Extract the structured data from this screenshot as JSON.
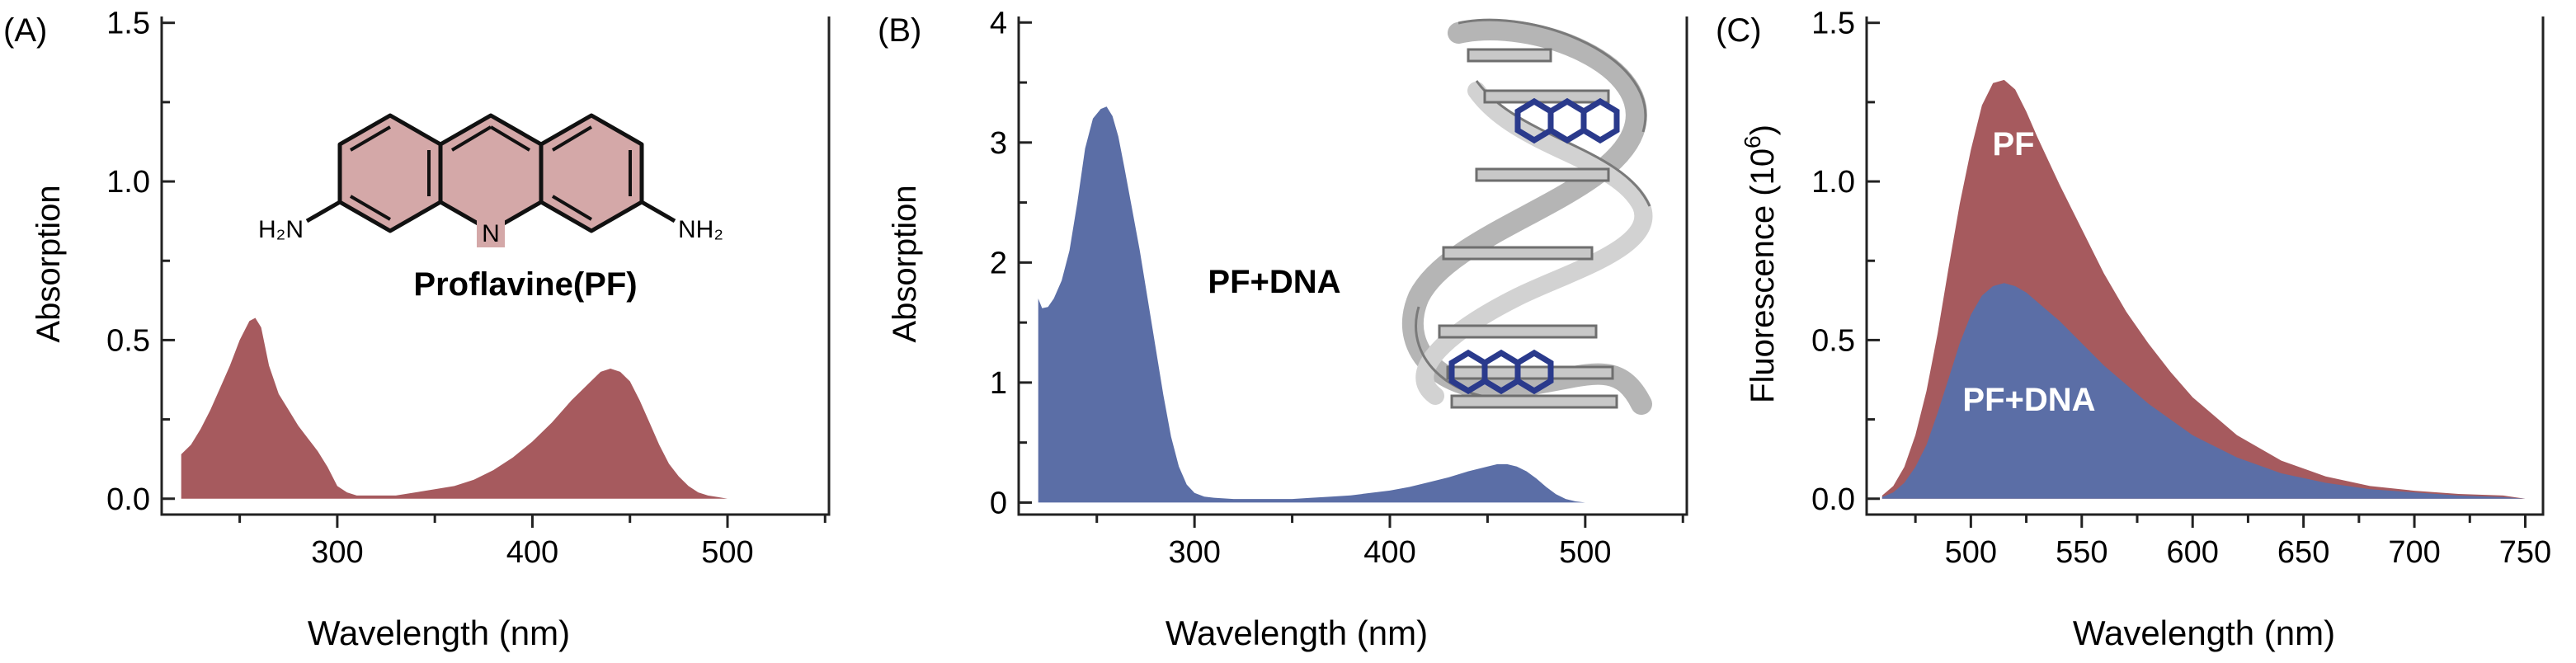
{
  "colors": {
    "red": "#a65a5e",
    "blue": "#5b6ea6",
    "ring_fill": "#d4a8a8",
    "axis": "#222222",
    "dna": "#bdbdbd",
    "dna_dark": "#6e6e6e",
    "pf_in_dna": "#2a3a8c"
  },
  "chart_data": [
    {
      "panel_label": "(A)",
      "type": "area",
      "title": "",
      "xlabel": "Wavelength (nm)",
      "ylabel": "Absorption",
      "xlim": [
        210,
        552
      ],
      "ylim": [
        -0.05,
        1.52
      ],
      "xticks": [
        300,
        400,
        500
      ],
      "xtick_labels": [
        "300",
        "400",
        "500"
      ],
      "yticks": [
        0.0,
        0.5,
        1.0,
        1.5
      ],
      "ytick_labels": [
        "0.0",
        "0.5",
        "1.0",
        "1.5"
      ],
      "series": [
        {
          "color": "red",
          "x": [
            220,
            225,
            230,
            235,
            240,
            245,
            250,
            255,
            258,
            261,
            265,
            270,
            275,
            280,
            285,
            290,
            295,
            300,
            305,
            310,
            320,
            330,
            340,
            350,
            360,
            370,
            380,
            390,
            400,
            410,
            420,
            430,
            435,
            440,
            445,
            450,
            455,
            460,
            465,
            470,
            475,
            480,
            485,
            490,
            495,
            500
          ],
          "y": [
            0.14,
            0.17,
            0.22,
            0.28,
            0.35,
            0.42,
            0.5,
            0.56,
            0.57,
            0.54,
            0.42,
            0.33,
            0.28,
            0.23,
            0.19,
            0.15,
            0.1,
            0.04,
            0.02,
            0.01,
            0.01,
            0.01,
            0.02,
            0.03,
            0.04,
            0.06,
            0.09,
            0.13,
            0.18,
            0.24,
            0.31,
            0.37,
            0.4,
            0.41,
            0.4,
            0.37,
            0.31,
            0.24,
            0.17,
            0.11,
            0.07,
            0.04,
            0.02,
            0.01,
            0.005,
            0.0
          ]
        }
      ],
      "annotations": {
        "inset_caption": "Proflavine(PF)",
        "nh2_left": "H₂N",
        "nh2_right": "NH₂",
        "ring_n": "N"
      }
    },
    {
      "panel_label": "(B)",
      "type": "area",
      "title": "",
      "xlabel": "Wavelength (nm)",
      "ylabel": "Absorption",
      "xlim": [
        210,
        552
      ],
      "ylim": [
        -0.1,
        4.05
      ],
      "xticks": [
        300,
        400,
        500
      ],
      "xtick_labels": [
        "300",
        "400",
        "500"
      ],
      "yticks": [
        0,
        1,
        2,
        3,
        4
      ],
      "ytick_labels": [
        "0",
        "1",
        "2",
        "3",
        "4"
      ],
      "series": [
        {
          "name": "PF+DNA",
          "color": "blue",
          "x": [
            220,
            222,
            225,
            228,
            232,
            236,
            240,
            244,
            248,
            252,
            255,
            258,
            261,
            264,
            268,
            272,
            276,
            280,
            284,
            288,
            292,
            296,
            300,
            305,
            310,
            320,
            330,
            340,
            350,
            360,
            370,
            380,
            390,
            400,
            410,
            420,
            430,
            440,
            450,
            455,
            460,
            465,
            470,
            475,
            480,
            485,
            490,
            495,
            500
          ],
          "y": [
            1.7,
            1.62,
            1.63,
            1.7,
            1.85,
            2.1,
            2.5,
            2.95,
            3.2,
            3.28,
            3.3,
            3.22,
            3.05,
            2.8,
            2.45,
            2.1,
            1.7,
            1.3,
            0.9,
            0.55,
            0.3,
            0.15,
            0.08,
            0.05,
            0.04,
            0.03,
            0.03,
            0.03,
            0.03,
            0.04,
            0.05,
            0.06,
            0.08,
            0.1,
            0.13,
            0.17,
            0.21,
            0.26,
            0.3,
            0.32,
            0.32,
            0.3,
            0.26,
            0.2,
            0.13,
            0.07,
            0.03,
            0.01,
            0.0
          ]
        }
      ],
      "annotations": {
        "label": "PF+DNA"
      }
    },
    {
      "panel_label": "(C)",
      "type": "area",
      "title": "",
      "xlabel": "Wavelength (nm)",
      "ylabel": "Fluorescence (10",
      "ylabel_sup": "6",
      "ylabel_end": ")",
      "xlim": [
        453,
        758
      ],
      "ylim": [
        -0.05,
        1.52
      ],
      "xticks": [
        500,
        550,
        600,
        650,
        700,
        750
      ],
      "xtick_labels": [
        "500",
        "550",
        "600",
        "650",
        "700",
        "750"
      ],
      "yticks": [
        0.0,
        0.5,
        1.0,
        1.5
      ],
      "ytick_labels": [
        "0.0",
        "0.5",
        "1.0",
        "1.5"
      ],
      "series": [
        {
          "name": "PF",
          "color": "red",
          "x": [
            460,
            465,
            470,
            475,
            480,
            485,
            490,
            495,
            500,
            505,
            510,
            515,
            520,
            525,
            530,
            540,
            550,
            560,
            570,
            580,
            590,
            600,
            620,
            640,
            660,
            680,
            700,
            720,
            740,
            750
          ],
          "y": [
            0.01,
            0.04,
            0.1,
            0.2,
            0.34,
            0.52,
            0.73,
            0.93,
            1.1,
            1.24,
            1.31,
            1.32,
            1.29,
            1.22,
            1.14,
            0.99,
            0.85,
            0.71,
            0.59,
            0.49,
            0.4,
            0.32,
            0.2,
            0.12,
            0.07,
            0.04,
            0.025,
            0.015,
            0.01,
            0.0
          ]
        },
        {
          "name": "PF+DNA",
          "color": "blue",
          "x": [
            460,
            465,
            470,
            475,
            480,
            485,
            490,
            495,
            500,
            505,
            510,
            515,
            520,
            525,
            530,
            540,
            550,
            560,
            570,
            580,
            590,
            600,
            620,
            640,
            660,
            680,
            700,
            720,
            740,
            750
          ],
          "y": [
            0.005,
            0.02,
            0.05,
            0.1,
            0.17,
            0.27,
            0.38,
            0.49,
            0.58,
            0.64,
            0.67,
            0.68,
            0.67,
            0.65,
            0.62,
            0.56,
            0.49,
            0.42,
            0.36,
            0.3,
            0.25,
            0.2,
            0.13,
            0.08,
            0.05,
            0.03,
            0.02,
            0.01,
            0.005,
            0.0
          ]
        }
      ],
      "annotations": {
        "pf_label": "PF",
        "pfdna_label": "PF+DNA"
      }
    }
  ]
}
